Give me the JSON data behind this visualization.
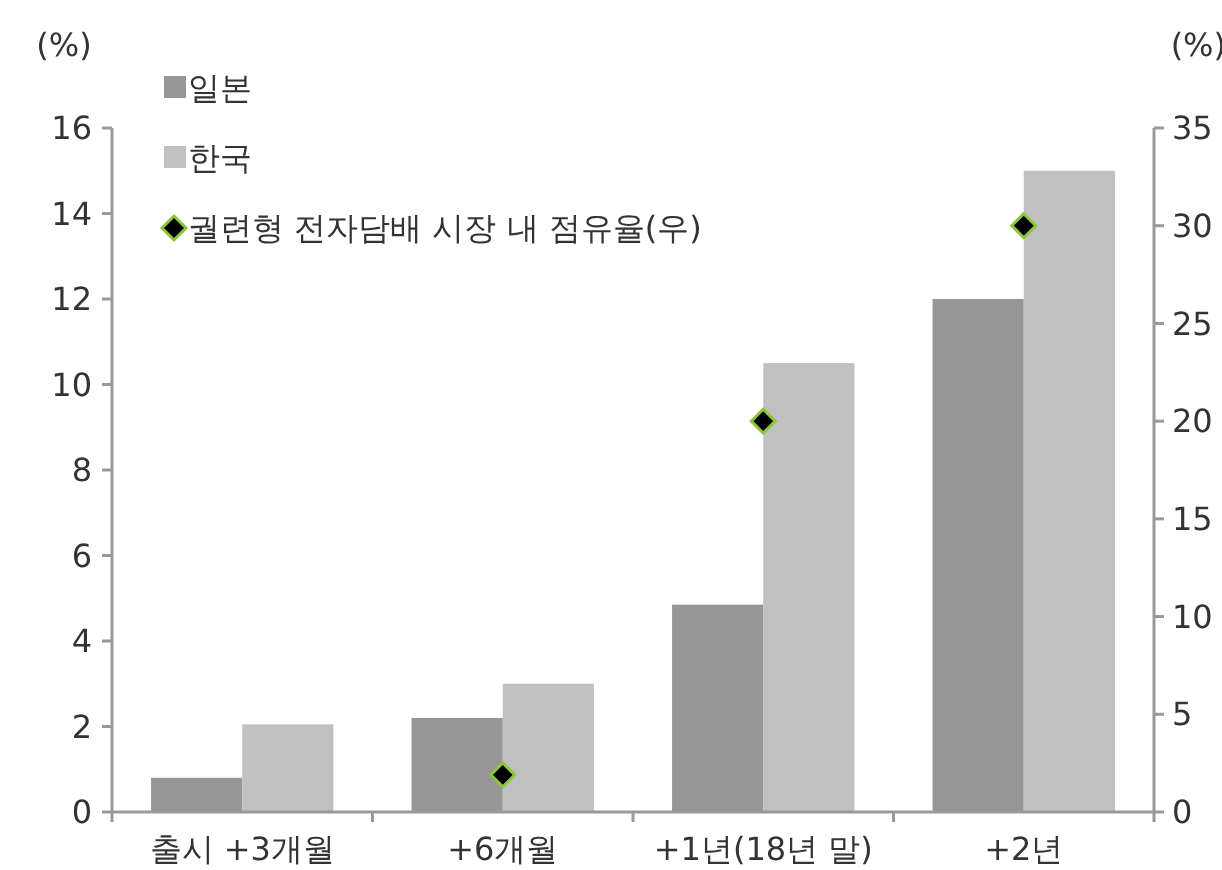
{
  "chart_data": {
    "type": "bar",
    "categories": [
      "출시 +3개월",
      "+6개월",
      "+1년(18년 말)",
      "+2년"
    ],
    "ylabel": "(%)",
    "y2label": "(%)",
    "ylim": [
      0,
      16
    ],
    "yticks": [
      0,
      2,
      4,
      6,
      8,
      10,
      12,
      14,
      16
    ],
    "y2lim": [
      0,
      35
    ],
    "y2ticks": [
      0,
      5,
      10,
      15,
      20,
      25,
      30,
      35
    ],
    "grid": false,
    "legend": "top left",
    "series": [
      {
        "name": "일본",
        "color": "#969696",
        "values": [
          0.8,
          2.2,
          4.85,
          12.0
        ]
      },
      {
        "name": "한국",
        "color": "#c0c0c0",
        "values": [
          2.05,
          3.0,
          10.5,
          15.0
        ]
      },
      {
        "name": "궐련형 전자담배 시장 내 점유율(우)",
        "type": "scatter",
        "axis": "y2",
        "marker": "diamond",
        "color": "#000000",
        "values": [
          null,
          1.9,
          20,
          30
        ]
      }
    ]
  }
}
